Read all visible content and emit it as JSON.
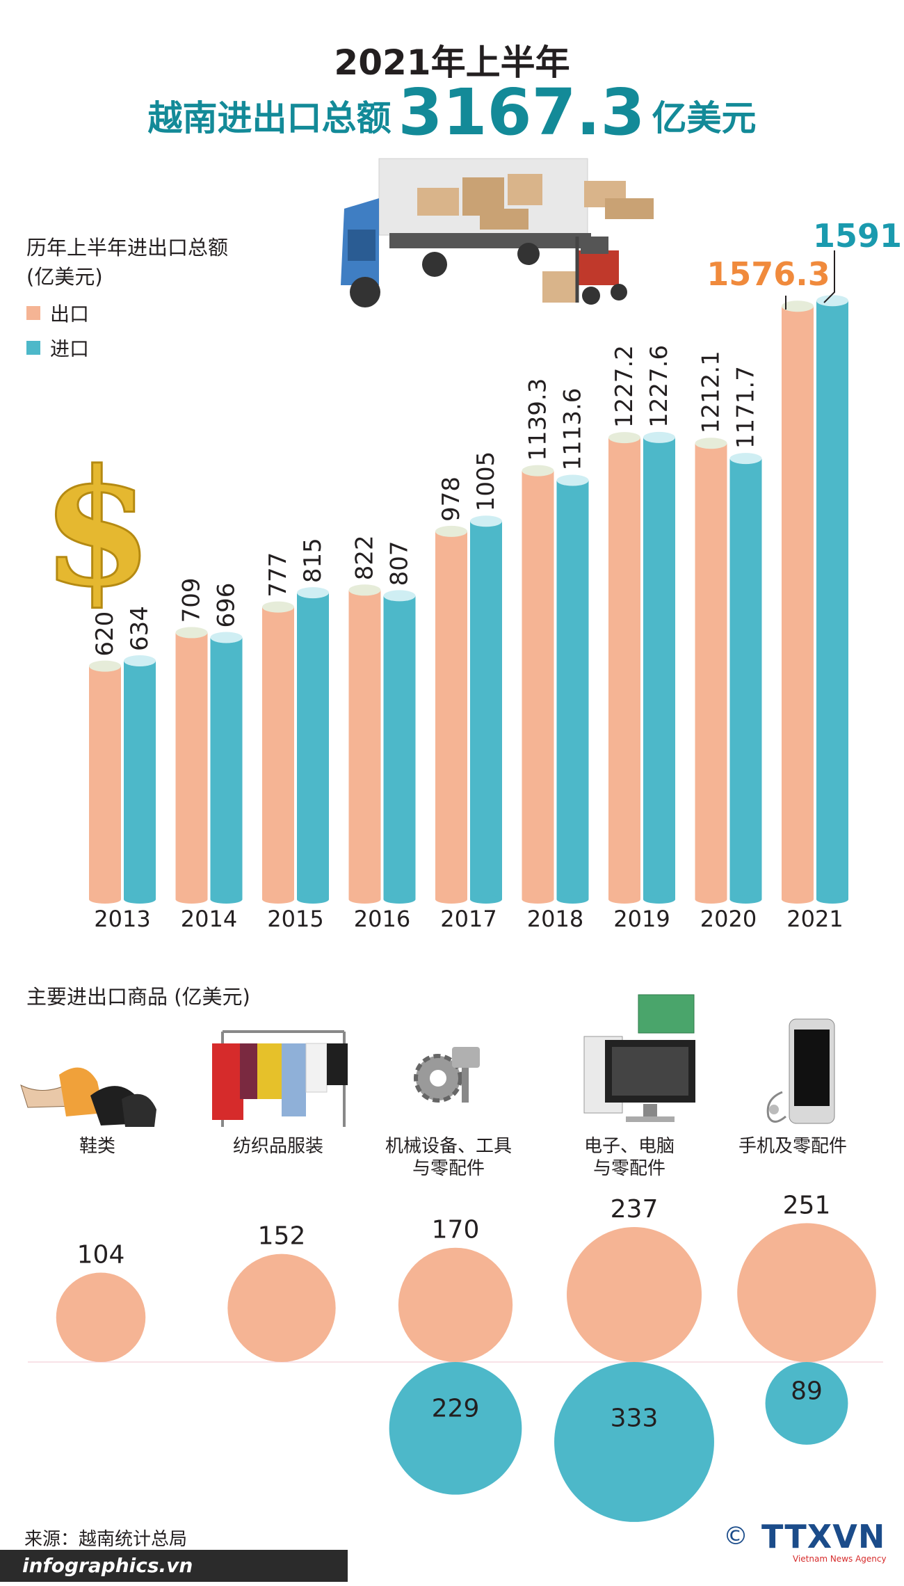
{
  "title": {
    "line1": "2021年上半年",
    "line2_prefix": "越南进出口总额",
    "line2_value": "3167.3",
    "line2_unit": "亿美元"
  },
  "legend": {
    "title_line1": "历年上半年进出口总额",
    "title_line2": "(亿美元)",
    "items": [
      {
        "label": "出口",
        "color": "#f5b494"
      },
      {
        "label": "进口",
        "color": "#4db8c9"
      }
    ]
  },
  "products_title": "主要进出口商品 (亿美元)",
  "source": "来源：越南统计总局",
  "brand": {
    "left": "infographics.vn",
    "right": "TTXVN",
    "right_sub": "Vietnam News Agency",
    "copyright": "©"
  },
  "colors": {
    "export": "#f5b494",
    "import": "#4db8c9",
    "highlight_export": "#f08a3c",
    "highlight_import": "#1a9aae",
    "teal_title": "#138a98"
  },
  "icons": [
    "truck-icon",
    "forklift-icon",
    "dollar-icon",
    "shoes-icon",
    "clothes-rack-icon",
    "gear-piston-icon",
    "computer-icon",
    "phone-icon"
  ],
  "chart_data": [
    {
      "type": "bar",
      "categories": [
        "2013",
        "2014",
        "2015",
        "2016",
        "2017",
        "2018",
        "2019",
        "2020",
        "2021"
      ],
      "series": [
        {
          "name": "出口",
          "values": [
            620,
            709,
            777,
            822,
            978,
            1139.3,
            1227.2,
            1212.1,
            1576.3
          ],
          "labels": [
            "620",
            "709",
            "777",
            "822",
            "978",
            "1139.3",
            "1227.2",
            "1212.1",
            "1576.3"
          ]
        },
        {
          "name": "进口",
          "values": [
            634,
            696,
            815,
            807,
            1005,
            1113.6,
            1227.6,
            1171.7,
            1591
          ],
          "labels": [
            "634",
            "696",
            "815",
            "807",
            "1005",
            "1113.6",
            "1227.6",
            "1171.7",
            "1591"
          ]
        }
      ],
      "ylim": [
        0,
        1600
      ]
    },
    {
      "type": "bubble",
      "categories": [
        "鞋类",
        "纺织品服装",
        "机械设备、工具\n与零配件",
        "电子、电脑\n与零配件",
        "手机及零配件"
      ],
      "category_lines": [
        [
          "鞋类"
        ],
        [
          "纺织品服装"
        ],
        [
          "机械设备、工具",
          "与零配件"
        ],
        [
          "电子、电脑",
          "与零配件"
        ],
        [
          "手机及零配件"
        ]
      ],
      "series": [
        {
          "name": "出口",
          "values": [
            104,
            152,
            170,
            237,
            251
          ],
          "labels": [
            "104",
            "152",
            "170",
            "237",
            "251"
          ]
        },
        {
          "name": "进口",
          "values": [
            null,
            null,
            229,
            333,
            89
          ],
          "labels": [
            "",
            "",
            "229",
            "333",
            "89"
          ]
        }
      ]
    }
  ]
}
